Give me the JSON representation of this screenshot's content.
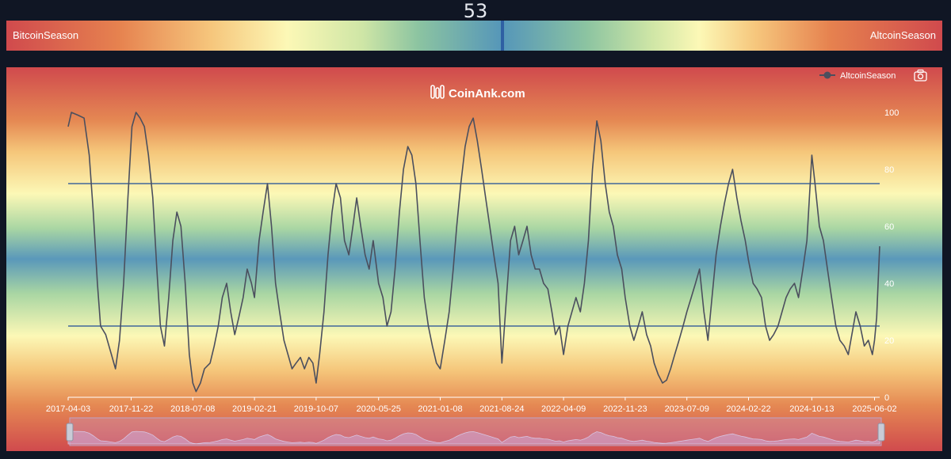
{
  "gauge": {
    "value": "53",
    "left_label": "BitcoinSeason",
    "right_label": "AltcoinSeason"
  },
  "watermark": "CoinAnk.com",
  "legend": {
    "label": "AltcoinSeason",
    "icon": "line-dot-icon"
  },
  "toolbar": {
    "icon": "camera-icon"
  },
  "colors": {
    "page_bg": "#101624",
    "series_line": "#4b4f5e",
    "threshold_line": "#41679a",
    "bitcoin_season": "#d04a4d",
    "neutral": "#5596b9"
  },
  "chart_data": {
    "type": "line",
    "title": "",
    "xlabel": "",
    "ylabel": "",
    "ylim": [
      0,
      100
    ],
    "yticks": [
      0,
      20,
      40,
      60,
      80,
      100
    ],
    "x_tick_labels": [
      "2017-04-03",
      "2017-11-22",
      "2018-07-08",
      "2019-02-21",
      "2019-10-07",
      "2020-05-25",
      "2021-01-08",
      "2021-08-24",
      "2022-04-09",
      "2022-11-23",
      "2023-07-09",
      "2024-02-22",
      "2024-10-13",
      "2025-06-02"
    ],
    "x_range": [
      "2017-04-03",
      "2025-06-21"
    ],
    "thresholds": [
      75,
      25
    ],
    "grid": false,
    "legend_position": "top-right",
    "series": [
      {
        "name": "AltcoinSeason",
        "points": [
          [
            "2017-04-03",
            95
          ],
          [
            "2017-04-15",
            100
          ],
          [
            "2017-05-10",
            99
          ],
          [
            "2017-06-01",
            98
          ],
          [
            "2017-06-20",
            85
          ],
          [
            "2017-07-05",
            65
          ],
          [
            "2017-07-20",
            40
          ],
          [
            "2017-08-01",
            25
          ],
          [
            "2017-08-20",
            22
          ],
          [
            "2017-09-10",
            15
          ],
          [
            "2017-09-25",
            10
          ],
          [
            "2017-10-10",
            20
          ],
          [
            "2017-10-25",
            40
          ],
          [
            "2017-11-10",
            70
          ],
          [
            "2017-11-25",
            95
          ],
          [
            "2017-12-10",
            100
          ],
          [
            "2017-12-25",
            98
          ],
          [
            "2018-01-10",
            95
          ],
          [
            "2018-01-25",
            85
          ],
          [
            "2018-02-10",
            70
          ],
          [
            "2018-02-25",
            45
          ],
          [
            "2018-03-10",
            25
          ],
          [
            "2018-03-25",
            18
          ],
          [
            "2018-04-10",
            35
          ],
          [
            "2018-04-25",
            55
          ],
          [
            "2018-05-10",
            65
          ],
          [
            "2018-05-25",
            60
          ],
          [
            "2018-06-10",
            40
          ],
          [
            "2018-06-25",
            15
          ],
          [
            "2018-07-08",
            5
          ],
          [
            "2018-07-20",
            2
          ],
          [
            "2018-08-05",
            5
          ],
          [
            "2018-08-20",
            10
          ],
          [
            "2018-09-10",
            12
          ],
          [
            "2018-09-25",
            18
          ],
          [
            "2018-10-10",
            25
          ],
          [
            "2018-10-25",
            35
          ],
          [
            "2018-11-10",
            40
          ],
          [
            "2018-11-25",
            30
          ],
          [
            "2018-12-10",
            22
          ],
          [
            "2018-12-25",
            28
          ],
          [
            "2019-01-10",
            35
          ],
          [
            "2019-01-25",
            45
          ],
          [
            "2019-02-10",
            40
          ],
          [
            "2019-02-21",
            35
          ],
          [
            "2019-03-10",
            55
          ],
          [
            "2019-03-25",
            65
          ],
          [
            "2019-04-10",
            75
          ],
          [
            "2019-04-25",
            60
          ],
          [
            "2019-05-10",
            40
          ],
          [
            "2019-05-25",
            30
          ],
          [
            "2019-06-10",
            20
          ],
          [
            "2019-06-25",
            15
          ],
          [
            "2019-07-10",
            10
          ],
          [
            "2019-07-25",
            12
          ],
          [
            "2019-08-10",
            14
          ],
          [
            "2019-08-25",
            10
          ],
          [
            "2019-09-10",
            14
          ],
          [
            "2019-09-25",
            12
          ],
          [
            "2019-10-07",
            5
          ],
          [
            "2019-10-20",
            15
          ],
          [
            "2019-11-05",
            30
          ],
          [
            "2019-11-20",
            50
          ],
          [
            "2019-12-05",
            65
          ],
          [
            "2019-12-20",
            75
          ],
          [
            "2020-01-05",
            70
          ],
          [
            "2020-01-20",
            55
          ],
          [
            "2020-02-05",
            50
          ],
          [
            "2020-02-20",
            60
          ],
          [
            "2020-03-05",
            70
          ],
          [
            "2020-03-20",
            60
          ],
          [
            "2020-04-05",
            50
          ],
          [
            "2020-04-20",
            45
          ],
          [
            "2020-05-05",
            55
          ],
          [
            "2020-05-25",
            40
          ],
          [
            "2020-06-10",
            35
          ],
          [
            "2020-06-25",
            25
          ],
          [
            "2020-07-10",
            30
          ],
          [
            "2020-07-25",
            45
          ],
          [
            "2020-08-10",
            65
          ],
          [
            "2020-08-25",
            80
          ],
          [
            "2020-09-10",
            88
          ],
          [
            "2020-09-25",
            85
          ],
          [
            "2020-10-10",
            75
          ],
          [
            "2020-10-25",
            55
          ],
          [
            "2020-11-10",
            35
          ],
          [
            "2020-11-25",
            25
          ],
          [
            "2020-12-10",
            18
          ],
          [
            "2020-12-25",
            12
          ],
          [
            "2021-01-08",
            10
          ],
          [
            "2021-01-25",
            20
          ],
          [
            "2021-02-10",
            30
          ],
          [
            "2021-02-25",
            45
          ],
          [
            "2021-03-10",
            60
          ],
          [
            "2021-03-25",
            75
          ],
          [
            "2021-04-10",
            88
          ],
          [
            "2021-04-25",
            95
          ],
          [
            "2021-05-10",
            98
          ],
          [
            "2021-05-25",
            90
          ],
          [
            "2021-06-10",
            80
          ],
          [
            "2021-06-25",
            70
          ],
          [
            "2021-07-10",
            60
          ],
          [
            "2021-07-25",
            50
          ],
          [
            "2021-08-10",
            40
          ],
          [
            "2021-08-24",
            12
          ],
          [
            "2021-09-10",
            35
          ],
          [
            "2021-09-25",
            55
          ],
          [
            "2021-10-10",
            60
          ],
          [
            "2021-10-25",
            50
          ],
          [
            "2021-11-10",
            55
          ],
          [
            "2021-11-25",
            60
          ],
          [
            "2021-12-10",
            50
          ],
          [
            "2021-12-25",
            45
          ],
          [
            "2022-01-10",
            45
          ],
          [
            "2022-01-25",
            40
          ],
          [
            "2022-02-10",
            38
          ],
          [
            "2022-02-25",
            30
          ],
          [
            "2022-03-10",
            22
          ],
          [
            "2022-03-25",
            25
          ],
          [
            "2022-04-09",
            15
          ],
          [
            "2022-04-25",
            25
          ],
          [
            "2022-05-10",
            30
          ],
          [
            "2022-05-25",
            35
          ],
          [
            "2022-06-10",
            30
          ],
          [
            "2022-06-25",
            40
          ],
          [
            "2022-07-10",
            55
          ],
          [
            "2022-07-25",
            80
          ],
          [
            "2022-08-10",
            97
          ],
          [
            "2022-08-25",
            90
          ],
          [
            "2022-09-10",
            75
          ],
          [
            "2022-09-25",
            65
          ],
          [
            "2022-10-10",
            60
          ],
          [
            "2022-10-25",
            50
          ],
          [
            "2022-11-10",
            45
          ],
          [
            "2022-11-23",
            35
          ],
          [
            "2022-12-10",
            25
          ],
          [
            "2022-12-25",
            20
          ],
          [
            "2023-01-10",
            25
          ],
          [
            "2023-01-25",
            30
          ],
          [
            "2023-02-10",
            22
          ],
          [
            "2023-02-25",
            18
          ],
          [
            "2023-03-10",
            12
          ],
          [
            "2023-03-25",
            8
          ],
          [
            "2023-04-10",
            5
          ],
          [
            "2023-04-25",
            6
          ],
          [
            "2023-05-10",
            10
          ],
          [
            "2023-05-25",
            15
          ],
          [
            "2023-06-10",
            20
          ],
          [
            "2023-06-25",
            25
          ],
          [
            "2023-07-09",
            30
          ],
          [
            "2023-07-25",
            35
          ],
          [
            "2023-08-10",
            40
          ],
          [
            "2023-08-25",
            45
          ],
          [
            "2023-09-10",
            30
          ],
          [
            "2023-09-25",
            20
          ],
          [
            "2023-10-10",
            35
          ],
          [
            "2023-10-25",
            50
          ],
          [
            "2023-11-10",
            60
          ],
          [
            "2023-11-25",
            68
          ],
          [
            "2023-12-10",
            75
          ],
          [
            "2023-12-25",
            80
          ],
          [
            "2024-01-10",
            70
          ],
          [
            "2024-01-25",
            62
          ],
          [
            "2024-02-10",
            55
          ],
          [
            "2024-02-22",
            48
          ],
          [
            "2024-03-10",
            40
          ],
          [
            "2024-03-25",
            38
          ],
          [
            "2024-04-10",
            35
          ],
          [
            "2024-04-25",
            25
          ],
          [
            "2024-05-10",
            20
          ],
          [
            "2024-05-25",
            22
          ],
          [
            "2024-06-10",
            25
          ],
          [
            "2024-06-25",
            30
          ],
          [
            "2024-07-10",
            35
          ],
          [
            "2024-07-25",
            38
          ],
          [
            "2024-08-10",
            40
          ],
          [
            "2024-08-25",
            35
          ],
          [
            "2024-09-10",
            45
          ],
          [
            "2024-09-25",
            55
          ],
          [
            "2024-10-13",
            85
          ],
          [
            "2024-10-25",
            75
          ],
          [
            "2024-11-10",
            60
          ],
          [
            "2024-11-25",
            55
          ],
          [
            "2024-12-10",
            45
          ],
          [
            "2024-12-25",
            35
          ],
          [
            "2025-01-10",
            25
          ],
          [
            "2025-01-25",
            20
          ],
          [
            "2025-02-10",
            18
          ],
          [
            "2025-02-25",
            15
          ],
          [
            "2025-03-10",
            22
          ],
          [
            "2025-03-25",
            30
          ],
          [
            "2025-04-10",
            25
          ],
          [
            "2025-04-25",
            18
          ],
          [
            "2025-05-10",
            20
          ],
          [
            "2025-05-25",
            15
          ],
          [
            "2025-06-02",
            20
          ],
          [
            "2025-06-10",
            28
          ],
          [
            "2025-06-15",
            40
          ],
          [
            "2025-06-21",
            53
          ]
        ]
      }
    ]
  }
}
